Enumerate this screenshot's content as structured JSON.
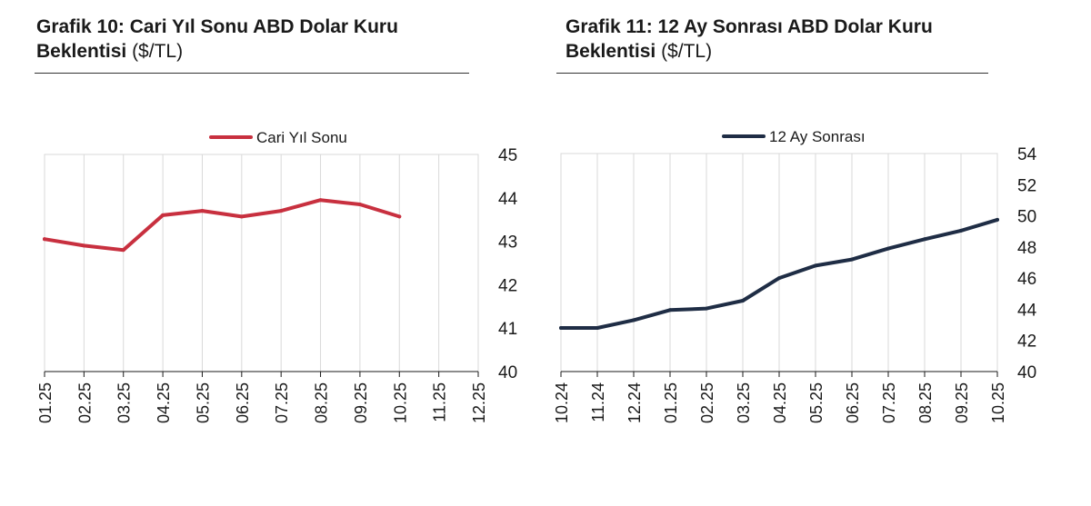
{
  "charts": [
    {
      "title_bold_line1": "Grafik 10: Cari Yıl Sonu ABD Dolar Kuru",
      "title_bold_line2": "Beklentisi",
      "title_unit": "($/TL)"
    },
    {
      "title_bold_line1": "Grafik 11: 12 Ay Sonrası ABD Dolar Kuru",
      "title_bold_line2": "Beklentisi",
      "title_unit": "($/TL)"
    }
  ],
  "chart_data": [
    {
      "type": "line",
      "title": "Grafik 10: Cari Yıl Sonu ABD Dolar Kuru Beklentisi ($/TL)",
      "categories": [
        "01.25",
        "02.25",
        "03.25",
        "04.25",
        "05.25",
        "06.25",
        "07.25",
        "08.25",
        "09.25",
        "10.25",
        "11.25",
        "12.25"
      ],
      "series": [
        {
          "name": "Cari Yıl Sonu",
          "color": "#c8303f",
          "values": [
            43.05,
            42.9,
            42.8,
            43.6,
            43.7,
            43.57,
            43.7,
            43.95,
            43.85,
            43.57,
            null,
            null
          ]
        }
      ],
      "yticks": [
        "40",
        "41",
        "42",
        "43",
        "44",
        "45"
      ],
      "ylim": [
        40,
        45
      ],
      "y_axis_side": "right",
      "legend": "top-center",
      "grid": "vertical"
    },
    {
      "type": "line",
      "title": "Grafik 11: 12 Ay Sonrası ABD Dolar Kuru Beklentisi ($/TL)",
      "categories": [
        "10.24",
        "11.24",
        "12.24",
        "01.25",
        "02.25",
        "03.25",
        "04.25",
        "05.25",
        "06.25",
        "07.25",
        "08.25",
        "09.25",
        "10.25"
      ],
      "series": [
        {
          "name": "12 Ay Sonrası",
          "color": "#1f2d45",
          "values": [
            42.8,
            42.8,
            43.3,
            43.95,
            44.05,
            44.55,
            46.0,
            46.8,
            47.2,
            47.9,
            48.5,
            49.05,
            49.75
          ]
        }
      ],
      "yticks": [
        "40",
        "42",
        "44",
        "46",
        "48",
        "50",
        "52",
        "54"
      ],
      "ylim": [
        40,
        54
      ],
      "y_axis_side": "right",
      "legend": "top-center",
      "grid": "vertical"
    }
  ]
}
